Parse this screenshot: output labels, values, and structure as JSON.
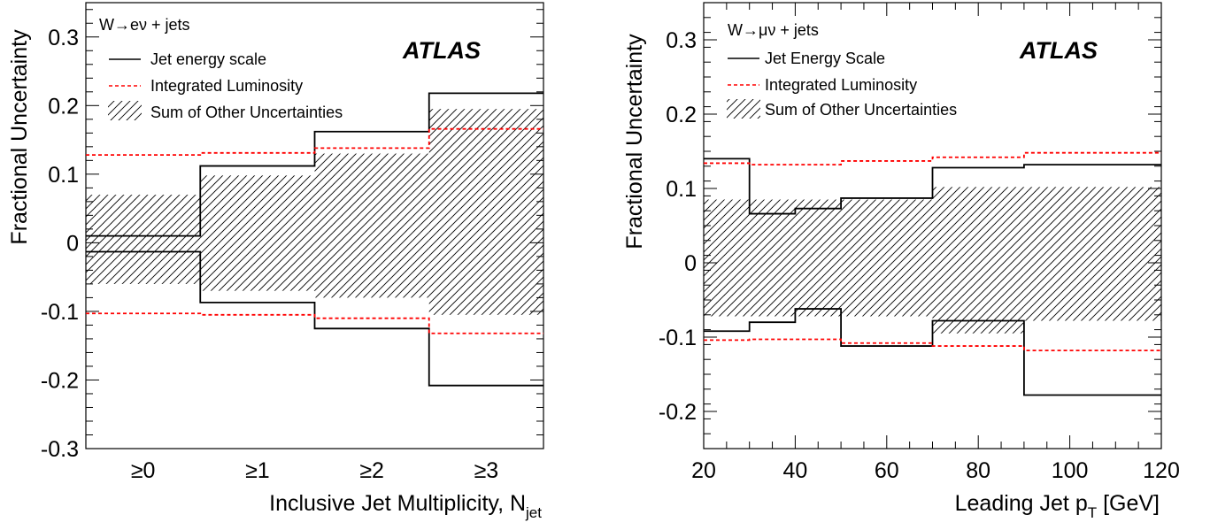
{
  "chart_data": [
    {
      "type": "step-line",
      "process": "W→eν + jets",
      "watermark": "ATLAS",
      "xlabel": {
        "main": "Inclusive Jet Multiplicity, N",
        "sub": "jet"
      },
      "ylabel": "Fractional Uncertainty",
      "categories": [
        "≥0",
        "≥1",
        "≥2",
        "≥3"
      ],
      "ylim": [
        -0.3,
        0.35
      ],
      "yticks": [
        "-0.3",
        "-0.2",
        "-0.1",
        "0",
        "0.1",
        "0.2",
        "0.3"
      ],
      "yticks_values": [
        -0.3,
        -0.2,
        -0.1,
        0,
        0.1,
        0.2,
        0.3
      ],
      "legend": [
        "Jet energy scale",
        "Integrated Luminosity",
        "Sum of Other Uncertainties"
      ],
      "series": [
        {
          "name": "Jet energy scale",
          "style": "solid",
          "color": "#000000",
          "up": [
            0.01,
            0.112,
            0.162,
            0.218
          ],
          "down": [
            -0.013,
            -0.087,
            -0.125,
            -0.208
          ]
        },
        {
          "name": "Integrated Luminosity",
          "style": "dashed",
          "color": "#ff0000",
          "up": [
            0.128,
            0.131,
            0.138,
            0.166
          ],
          "down": [
            -0.103,
            -0.105,
            -0.11,
            -0.132
          ]
        },
        {
          "name": "Sum of Other Uncertainties",
          "style": "hatched",
          "color": "#000000",
          "up": [
            0.07,
            0.098,
            0.13,
            0.195
          ],
          "down": [
            -0.06,
            -0.07,
            -0.08,
            -0.105
          ]
        }
      ]
    },
    {
      "type": "step-line",
      "process": "W→μν + jets",
      "watermark": "ATLAS",
      "xlabel": {
        "main": "Leading Jet p",
        "sub": "T",
        "unit": " [GeV]"
      },
      "ylabel": "Fractional Uncertainty",
      "xlim": [
        20,
        120
      ],
      "xticks": [
        "20",
        "40",
        "60",
        "80",
        "100",
        "120"
      ],
      "xticks_values": [
        20,
        40,
        60,
        80,
        100,
        120
      ],
      "bin_edges": [
        20,
        30,
        40,
        50,
        70,
        90,
        120
      ],
      "ylim": [
        -0.25,
        0.35
      ],
      "yticks": [
        "-0.2",
        "-0.1",
        "0",
        "0.1",
        "0.2",
        "0.3"
      ],
      "yticks_values": [
        -0.2,
        -0.1,
        0,
        0.1,
        0.2,
        0.3
      ],
      "legend": [
        "Jet Energy Scale",
        "Integrated Luminosity",
        "Sum of Other Uncertainties"
      ],
      "series": [
        {
          "name": "Jet Energy Scale",
          "style": "solid",
          "color": "#000000",
          "up": [
            0.14,
            0.066,
            0.073,
            0.087,
            0.128,
            0.132
          ],
          "down": [
            -0.092,
            -0.08,
            -0.062,
            -0.112,
            -0.078,
            -0.178
          ]
        },
        {
          "name": "Integrated Luminosity",
          "style": "dashed",
          "color": "#ff0000",
          "up": [
            0.134,
            0.132,
            0.132,
            0.137,
            0.142,
            0.148
          ],
          "down": [
            -0.104,
            -0.103,
            -0.103,
            -0.108,
            -0.112,
            -0.118
          ]
        },
        {
          "name": "Sum of Other Uncertainties",
          "style": "hatched",
          "color": "#000000",
          "up": [
            0.085,
            0.085,
            0.085,
            0.085,
            0.102,
            0.102
          ],
          "down": [
            -0.072,
            -0.072,
            -0.072,
            -0.072,
            -0.095,
            -0.078
          ]
        }
      ]
    }
  ]
}
